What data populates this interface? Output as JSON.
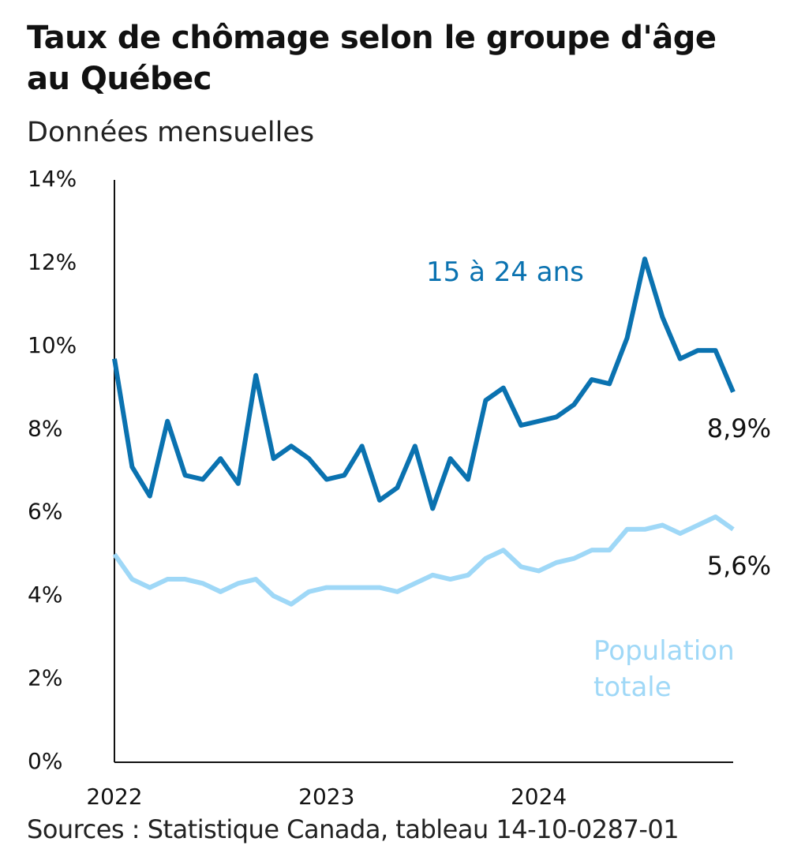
{
  "chart_data": {
    "type": "line",
    "title": "Taux de chômage selon le groupe d'âge au Québec",
    "subtitle": "Données mensuelles",
    "source": "Sources : Statistique Canada, tableau 14-10-0287-01",
    "categories": [
      "2022",
      null,
      null,
      null,
      null,
      null,
      null,
      null,
      null,
      null,
      null,
      null,
      "2023",
      null,
      null,
      null,
      null,
      null,
      null,
      null,
      null,
      null,
      null,
      null,
      "2024",
      null,
      null,
      null,
      null,
      null,
      null,
      null,
      null,
      null,
      null,
      null
    ],
    "ylim": [
      0,
      14
    ],
    "yticks": [
      {
        "value": 0,
        "label": "0%"
      },
      {
        "value": 2,
        "label": "2%"
      },
      {
        "value": 4,
        "label": "4%"
      },
      {
        "value": 6,
        "label": "6%"
      },
      {
        "value": 8,
        "label": "8%"
      },
      {
        "value": 10,
        "label": "10%"
      },
      {
        "value": 12,
        "label": "12%"
      },
      {
        "value": 14,
        "label": "14%"
      }
    ],
    "grid": false,
    "series": [
      {
        "name": "15 à 24 ans",
        "color": "#0a72b0",
        "values": [
          9.7,
          7.1,
          6.4,
          8.2,
          6.9,
          6.8,
          7.3,
          6.7,
          9.3,
          7.3,
          7.6,
          7.3,
          6.8,
          6.9,
          7.6,
          6.3,
          6.6,
          7.6,
          6.1,
          7.3,
          6.8,
          8.7,
          9.0,
          8.1,
          8.2,
          8.3,
          8.6,
          9.2,
          9.1,
          10.2,
          12.1,
          10.7,
          9.7,
          9.9,
          9.9,
          8.9
        ],
        "value_labels": [
          null,
          null,
          null,
          null,
          null,
          null,
          null,
          null,
          null,
          null,
          null,
          null,
          null,
          null,
          null,
          null,
          null,
          null,
          null,
          null,
          null,
          null,
          null,
          null,
          null,
          null,
          null,
          null,
          null,
          null,
          null,
          null,
          null,
          null,
          null,
          "8,9%"
        ]
      },
      {
        "name": "Population totale",
        "color": "#9fd8f7",
        "values": [
          5.0,
          4.4,
          4.2,
          4.4,
          4.4,
          4.3,
          4.1,
          4.3,
          4.4,
          4.0,
          3.8,
          4.1,
          4.2,
          4.2,
          4.2,
          4.2,
          4.1,
          4.3,
          4.5,
          4.4,
          4.5,
          4.9,
          5.1,
          4.7,
          4.6,
          4.8,
          4.9,
          5.1,
          5.1,
          5.6,
          5.6,
          5.7,
          5.5,
          5.7,
          5.9,
          5.6
        ],
        "value_labels": [
          null,
          null,
          null,
          null,
          null,
          null,
          null,
          null,
          null,
          null,
          null,
          null,
          null,
          null,
          null,
          null,
          null,
          null,
          null,
          null,
          null,
          null,
          null,
          null,
          null,
          null,
          null,
          null,
          null,
          null,
          null,
          null,
          null,
          null,
          null,
          "5,6%"
        ]
      }
    ]
  }
}
